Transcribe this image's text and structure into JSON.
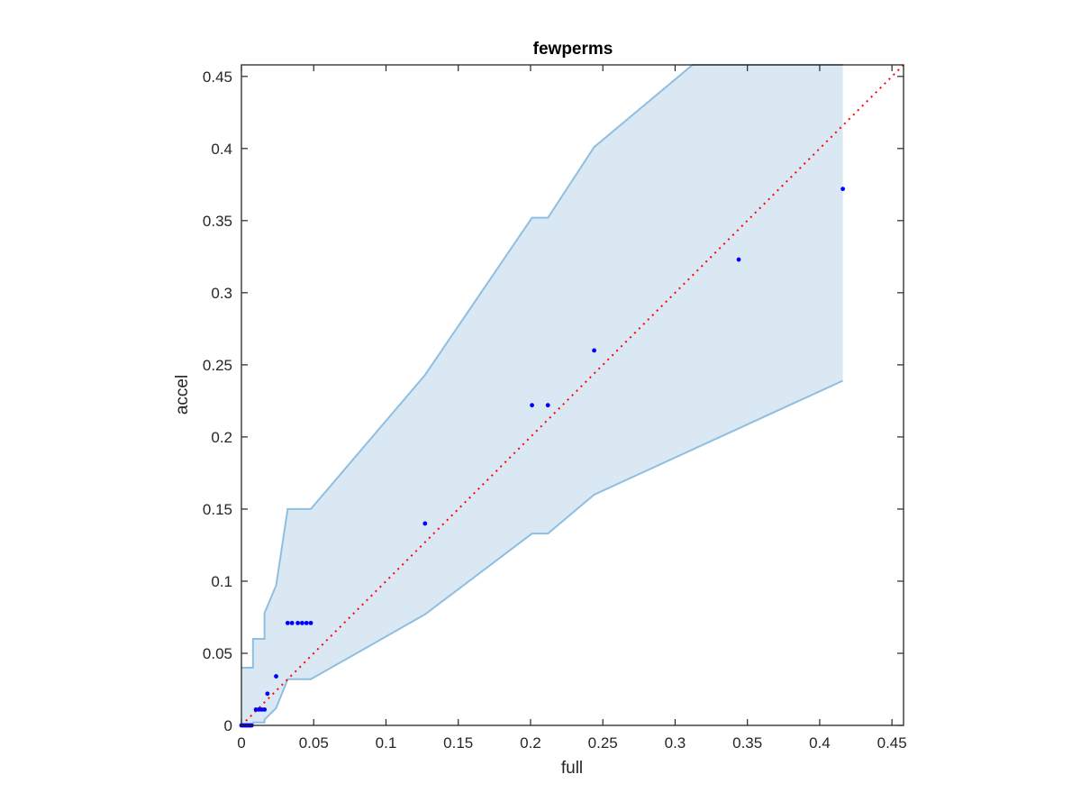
{
  "chart_data": {
    "type": "scatter",
    "title": "fewperms",
    "xlabel": "full",
    "ylabel": "accel",
    "xlim": [
      0,
      0.458
    ],
    "ylim": [
      0,
      0.458
    ],
    "xticks": [
      0,
      0.05,
      0.1,
      0.15,
      0.2,
      0.25,
      0.3,
      0.35,
      0.4,
      0.45
    ],
    "xtick_labels": [
      "0",
      "0.05",
      "0.1",
      "0.15",
      "0.2",
      "0.25",
      "0.3",
      "0.35",
      "0.4",
      "0.45"
    ],
    "yticks": [
      0,
      0.05,
      0.1,
      0.15,
      0.2,
      0.25,
      0.3,
      0.35,
      0.4,
      0.45
    ],
    "ytick_labels": [
      "0",
      "0.05",
      "0.1",
      "0.15",
      "0.2",
      "0.25",
      "0.3",
      "0.35",
      "0.4",
      "0.45"
    ],
    "grid": false,
    "colors": {
      "points": "#0000ff",
      "band_fill": "#dae8f4",
      "band_edge": "#8fbfe0",
      "reference_line": "#ff0000",
      "axis": "#262626"
    },
    "confidence_band": {
      "upper": [
        [
          0,
          0.04
        ],
        [
          0.008,
          0.04
        ],
        [
          0.008,
          0.06
        ],
        [
          0.016,
          0.06
        ],
        [
          0.016,
          0.078
        ],
        [
          0.024,
          0.097
        ],
        [
          0.032,
          0.15
        ],
        [
          0.048,
          0.15
        ],
        [
          0.127,
          0.243
        ],
        [
          0.201,
          0.352
        ],
        [
          0.212,
          0.352
        ],
        [
          0.244,
          0.401
        ],
        [
          0.312,
          0.458
        ],
        [
          0.416,
          0.458
        ]
      ],
      "lower": [
        [
          0,
          0
        ],
        [
          0.008,
          0
        ],
        [
          0.008,
          0.002
        ],
        [
          0.016,
          0.002
        ],
        [
          0.016,
          0.004
        ],
        [
          0.024,
          0.012
        ],
        [
          0.032,
          0.032
        ],
        [
          0.048,
          0.032
        ],
        [
          0.127,
          0.077
        ],
        [
          0.201,
          0.133
        ],
        [
          0.212,
          0.133
        ],
        [
          0.244,
          0.16
        ],
        [
          0.416,
          0.239
        ]
      ]
    },
    "reference_line": {
      "style": "dotted",
      "from": [
        0,
        0
      ],
      "to": [
        0.458,
        0.458
      ]
    },
    "points": [
      [
        0,
        0
      ],
      [
        0.001,
        0
      ],
      [
        0.002,
        0
      ],
      [
        0.003,
        0
      ],
      [
        0.004,
        0
      ],
      [
        0.005,
        0
      ],
      [
        0.006,
        0
      ],
      [
        0.007,
        0
      ],
      [
        0.01,
        0.011
      ],
      [
        0.012,
        0.011
      ],
      [
        0.014,
        0.011
      ],
      [
        0.016,
        0.011
      ],
      [
        0.018,
        0.022
      ],
      [
        0.024,
        0.034
      ],
      [
        0.032,
        0.071
      ],
      [
        0.035,
        0.071
      ],
      [
        0.039,
        0.071
      ],
      [
        0.042,
        0.071
      ],
      [
        0.045,
        0.071
      ],
      [
        0.048,
        0.071
      ],
      [
        0.127,
        0.14
      ],
      [
        0.201,
        0.222
      ],
      [
        0.212,
        0.222
      ],
      [
        0.244,
        0.26
      ],
      [
        0.344,
        0.323
      ],
      [
        0.416,
        0.372
      ]
    ]
  }
}
